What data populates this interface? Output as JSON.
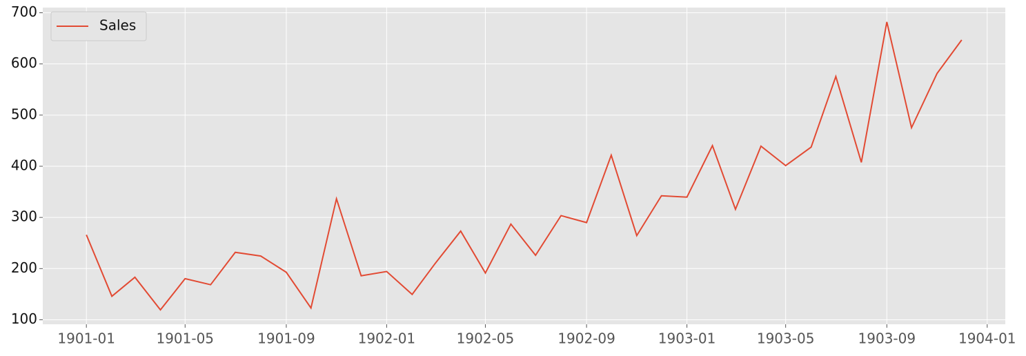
{
  "chart_data": {
    "type": "line",
    "x": [
      "1901-01",
      "1901-02",
      "1901-03",
      "1901-04",
      "1901-05",
      "1901-06",
      "1901-07",
      "1901-08",
      "1901-09",
      "1901-10",
      "1901-11",
      "1901-12",
      "1902-01",
      "1902-02",
      "1902-03",
      "1902-04",
      "1902-05",
      "1902-06",
      "1902-07",
      "1902-08",
      "1902-09",
      "1902-10",
      "1902-11",
      "1902-12",
      "1903-01",
      "1903-02",
      "1903-03",
      "1903-04",
      "1903-05",
      "1903-06",
      "1903-07",
      "1903-08",
      "1903-09",
      "1903-10",
      "1903-11",
      "1903-12"
    ],
    "series": [
      {
        "name": "Sales",
        "color": "#e24a33",
        "values": [
          266.0,
          145.9,
          183.1,
          119.3,
          180.3,
          168.5,
          231.8,
          224.5,
          192.8,
          122.9,
          336.5,
          185.9,
          194.3,
          149.5,
          210.1,
          273.3,
          191.4,
          287.0,
          226.0,
          303.6,
          289.9,
          421.6,
          264.5,
          342.3,
          339.7,
          440.4,
          315.9,
          439.3,
          401.3,
          437.4,
          575.5,
          407.6,
          682.0,
          475.3,
          581.3,
          646.9
        ]
      }
    ],
    "xlim": [
      "1900-11-09",
      "1904-01-23"
    ],
    "xticks": [
      "1901-01",
      "1901-05",
      "1901-09",
      "1902-01",
      "1902-05",
      "1902-09",
      "1903-01",
      "1903-05",
      "1903-09",
      "1904-01"
    ],
    "ylim": [
      91.2,
      710.1
    ],
    "yticks": [
      100,
      200,
      300,
      400,
      500,
      600,
      700
    ],
    "grid": true,
    "legend": "upper left"
  }
}
